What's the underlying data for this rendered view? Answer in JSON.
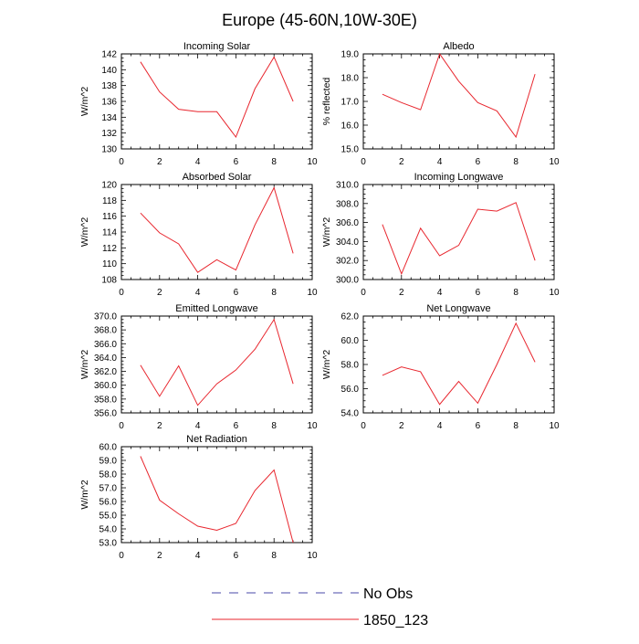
{
  "figure": {
    "title": "Europe (45-60N,10W-30E)"
  },
  "legend": {
    "entries": [
      {
        "label": "No Obs",
        "color": "#4a4aa8",
        "style": "dashed"
      },
      {
        "label": "1850_123",
        "color": "#e8262e",
        "style": "solid"
      }
    ]
  },
  "chart_data": [
    {
      "type": "line",
      "title": "Incoming Solar",
      "ylabel": "W/m^2",
      "xlim": [
        0,
        10
      ],
      "xticks": [
        0,
        2,
        4,
        6,
        8,
        10
      ],
      "ylim": [
        130,
        142
      ],
      "yticks": [
        130,
        132,
        134,
        136,
        138,
        140,
        142
      ],
      "ytick_decimals": 0,
      "series": [
        {
          "color": "#e8262e",
          "x": [
            1,
            2,
            3,
            4,
            5,
            6,
            7,
            8,
            9
          ],
          "y": [
            141.0,
            137.2,
            135.0,
            134.7,
            134.7,
            131.5,
            137.6,
            141.6,
            136.0
          ]
        }
      ]
    },
    {
      "type": "line",
      "title": "Albedo",
      "ylabel": "% reflected",
      "xlim": [
        0,
        10
      ],
      "xticks": [
        0,
        2,
        4,
        6,
        8,
        10
      ],
      "ylim": [
        15,
        19
      ],
      "yticks": [
        15,
        16,
        17,
        18,
        19
      ],
      "ytick_decimals": 1,
      "series": [
        {
          "color": "#e8262e",
          "x": [
            1,
            2,
            3,
            4,
            5,
            6,
            7,
            8,
            9
          ],
          "y": [
            17.3,
            16.95,
            16.65,
            19.0,
            17.85,
            16.95,
            16.6,
            15.5,
            18.15
          ]
        }
      ]
    },
    {
      "type": "line",
      "title": "Absorbed Solar",
      "ylabel": "W/m^2",
      "xlim": [
        0,
        10
      ],
      "xticks": [
        0,
        2,
        4,
        6,
        8,
        10
      ],
      "ylim": [
        108,
        120
      ],
      "yticks": [
        108,
        110,
        112,
        114,
        116,
        118,
        120
      ],
      "ytick_decimals": 0,
      "series": [
        {
          "color": "#e8262e",
          "x": [
            1,
            2,
            3,
            4,
            5,
            6,
            7,
            8,
            9
          ],
          "y": [
            116.4,
            113.9,
            112.5,
            108.9,
            110.5,
            109.2,
            114.9,
            119.6,
            111.3
          ]
        }
      ]
    },
    {
      "type": "line",
      "title": "Incoming Longwave",
      "ylabel": "W/m^2",
      "xlim": [
        0,
        10
      ],
      "xticks": [
        0,
        2,
        4,
        6,
        8,
        10
      ],
      "ylim": [
        300,
        310
      ],
      "yticks": [
        300,
        302,
        304,
        306,
        308,
        310
      ],
      "ytick_decimals": 1,
      "series": [
        {
          "color": "#e8262e",
          "x": [
            1,
            2,
            3,
            4,
            5,
            6,
            7,
            8,
            9
          ],
          "y": [
            305.8,
            300.6,
            305.4,
            302.5,
            303.6,
            307.4,
            307.2,
            308.1,
            302.0
          ]
        }
      ]
    },
    {
      "type": "line",
      "title": "Emitted Longwave",
      "ylabel": "W/m^2",
      "xlim": [
        0,
        10
      ],
      "xticks": [
        0,
        2,
        4,
        6,
        8,
        10
      ],
      "ylim": [
        356,
        370
      ],
      "yticks": [
        356,
        358,
        360,
        362,
        364,
        366,
        368,
        370
      ],
      "ytick_decimals": 1,
      "series": [
        {
          "color": "#e8262e",
          "x": [
            1,
            2,
            3,
            4,
            5,
            6,
            7,
            8,
            9
          ],
          "y": [
            362.9,
            358.4,
            362.8,
            357.1,
            360.2,
            362.2,
            365.2,
            369.5,
            360.2
          ]
        }
      ]
    },
    {
      "type": "line",
      "title": "Net Longwave",
      "ylabel": "W/m^2",
      "xlim": [
        0,
        10
      ],
      "xticks": [
        0,
        2,
        4,
        6,
        8,
        10
      ],
      "ylim": [
        54,
        62
      ],
      "yticks": [
        54,
        56,
        58,
        60,
        62
      ],
      "ytick_decimals": 1,
      "series": [
        {
          "color": "#e8262e",
          "x": [
            1,
            2,
            3,
            4,
            5,
            6,
            7,
            8,
            9
          ],
          "y": [
            57.1,
            57.8,
            57.4,
            54.7,
            56.6,
            54.8,
            58.0,
            61.4,
            58.2
          ]
        }
      ]
    },
    {
      "type": "line",
      "title": "Net Radiation",
      "ylabel": "W/m^2",
      "xlim": [
        0,
        10
      ],
      "xticks": [
        0,
        2,
        4,
        6,
        8,
        10
      ],
      "ylim": [
        53,
        60
      ],
      "yticks": [
        53,
        54,
        55,
        56,
        57,
        58,
        59,
        60
      ],
      "ytick_decimals": 1,
      "series": [
        {
          "color": "#e8262e",
          "x": [
            1,
            2,
            3,
            4,
            5,
            6,
            7,
            8,
            9
          ],
          "y": [
            59.3,
            56.1,
            55.1,
            54.2,
            53.9,
            54.4,
            56.8,
            58.3,
            53.0
          ]
        }
      ]
    }
  ]
}
